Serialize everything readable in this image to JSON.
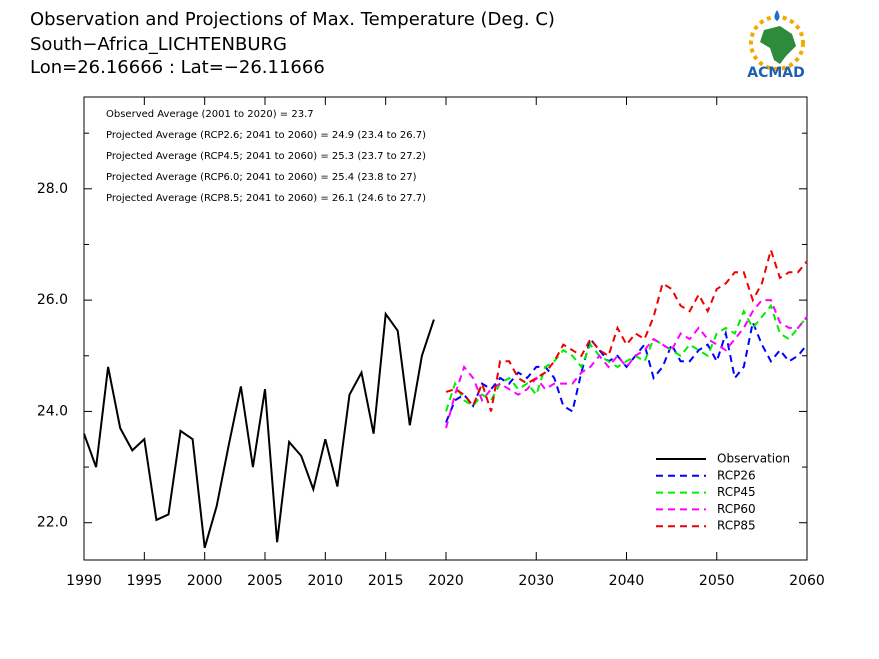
{
  "chart_data": {
    "type": "line",
    "title": [
      "Observation and Projections of Max. Temperature (Deg. C)",
      "South−Africa_LICHTENBURG",
      "Lon=26.16666 : Lat=−26.11666"
    ],
    "logo_text": "ACMAD",
    "annotations": [
      "Observed Average (2001 to 2020) = 23.7",
      "Projected Average (RCP2.6; 2041 to 2060) = 24.9 (23.4 to 26.7)",
      "Projected Average (RCP4.5; 2041 to 2060) = 25.3 (23.7 to 27.2)",
      "Projected Average (RCP6.0; 2041 to 2060) = 25.4 (23.8 to 27)",
      "Projected Average (RCP8.5; 2041 to 2060) = 26.1 (24.6 to 27.7)"
    ],
    "xlim": [
      1990,
      2060
    ],
    "xticks": [
      1990,
      1995,
      2000,
      2005,
      2010,
      2015,
      2020,
      2030,
      2040,
      2050,
      2060
    ],
    "ylim": [
      21.33,
      29.65
    ],
    "yticks": [
      {
        "value": 22,
        "label": "22.0"
      },
      {
        "value": 24,
        "label": "24.0"
      },
      {
        "value": 26,
        "label": "26.0"
      },
      {
        "value": 28,
        "label": "28.0"
      }
    ],
    "yminor_ticks": [
      23,
      25,
      27,
      29
    ],
    "legend": "lower right",
    "series": [
      {
        "name": "Observation",
        "color": "#000000",
        "linestyle": "solid",
        "x": [
          1990,
          1991,
          1992,
          1993,
          1994,
          1995,
          1996,
          1997,
          1998,
          1999,
          2000,
          2001,
          2002,
          2003,
          2004,
          2005,
          2006,
          2007,
          2008,
          2009,
          2010,
          2011,
          2012,
          2013,
          2014,
          2015,
          2016,
          2017,
          2018,
          2019
        ],
        "values": [
          23.6,
          23.0,
          24.8,
          23.7,
          23.3,
          23.5,
          22.05,
          22.15,
          23.65,
          23.5,
          21.55,
          22.3,
          23.4,
          24.45,
          23.0,
          24.4,
          21.65,
          23.45,
          23.2,
          22.6,
          23.5,
          22.65,
          24.3,
          24.7,
          23.6,
          25.75,
          25.45,
          23.75,
          25.0,
          25.65
        ]
      },
      {
        "name": "RCP26",
        "color": "#0000ff",
        "linestyle": "dashed",
        "x": [
          2020,
          2021,
          2022,
          2023,
          2024,
          2025,
          2026,
          2027,
          2028,
          2029,
          2030,
          2031,
          2032,
          2033,
          2034,
          2035,
          2036,
          2037,
          2038,
          2039,
          2040,
          2041,
          2042,
          2043,
          2044,
          2045,
          2046,
          2047,
          2048,
          2049,
          2050,
          2051,
          2052,
          2053,
          2054,
          2055,
          2056,
          2057,
          2058,
          2059,
          2060
        ],
        "values": [
          23.8,
          24.2,
          24.3,
          24.1,
          24.5,
          24.4,
          24.6,
          24.5,
          24.7,
          24.6,
          24.8,
          24.8,
          24.6,
          24.1,
          24.0,
          24.7,
          25.3,
          25.1,
          24.9,
          25.0,
          24.8,
          25.0,
          25.2,
          24.6,
          24.8,
          25.2,
          24.9,
          24.9,
          25.1,
          25.2,
          24.9,
          25.4,
          24.6,
          24.8,
          25.6,
          25.2,
          24.9,
          25.1,
          24.9,
          25.0,
          25.2
        ]
      },
      {
        "name": "RCP45",
        "color": "#00ee00",
        "linestyle": "dashed",
        "x": [
          2020,
          2021,
          2022,
          2023,
          2024,
          2025,
          2026,
          2027,
          2028,
          2029,
          2030,
          2031,
          2032,
          2033,
          2034,
          2035,
          2036,
          2037,
          2038,
          2039,
          2040,
          2041,
          2042,
          2043,
          2044,
          2045,
          2046,
          2047,
          2048,
          2049,
          2050,
          2051,
          2052,
          2053,
          2054,
          2055,
          2056,
          2057,
          2058,
          2059,
          2060
        ],
        "values": [
          24.0,
          24.5,
          24.2,
          24.1,
          24.3,
          24.2,
          24.5,
          24.6,
          24.4,
          24.5,
          24.3,
          24.8,
          24.9,
          25.1,
          25.0,
          24.8,
          25.2,
          25.0,
          24.9,
          24.8,
          24.9,
          25.0,
          24.9,
          25.3,
          25.2,
          25.1,
          25.0,
          25.2,
          25.1,
          25.0,
          25.4,
          25.5,
          25.4,
          25.8,
          25.5,
          25.7,
          25.9,
          25.4,
          25.3,
          25.5,
          25.7
        ]
      },
      {
        "name": "RCP60",
        "color": "#ff00ff",
        "linestyle": "dashed",
        "x": [
          2020,
          2021,
          2022,
          2023,
          2024,
          2025,
          2026,
          2027,
          2028,
          2029,
          2030,
          2031,
          2032,
          2033,
          2034,
          2035,
          2036,
          2037,
          2038,
          2039,
          2040,
          2041,
          2042,
          2043,
          2044,
          2045,
          2046,
          2047,
          2048,
          2049,
          2050,
          2051,
          2052,
          2053,
          2054,
          2055,
          2056,
          2057,
          2058,
          2059,
          2060
        ],
        "values": [
          23.7,
          24.3,
          24.8,
          24.6,
          24.2,
          24.4,
          24.5,
          24.4,
          24.3,
          24.4,
          24.6,
          24.4,
          24.5,
          24.5,
          24.5,
          24.7,
          24.8,
          25.0,
          24.8,
          25.0,
          24.8,
          25.0,
          25.1,
          25.3,
          25.2,
          25.1,
          25.4,
          25.3,
          25.5,
          25.3,
          25.2,
          25.1,
          25.3,
          25.5,
          25.8,
          26.0,
          26.0,
          25.6,
          25.5,
          25.5,
          25.7
        ]
      },
      {
        "name": "RCP85",
        "color": "#ee0000",
        "linestyle": "dashed",
        "x": [
          2020,
          2021,
          2022,
          2023,
          2024,
          2025,
          2026,
          2027,
          2028,
          2029,
          2030,
          2031,
          2032,
          2033,
          2034,
          2035,
          2036,
          2037,
          2038,
          2039,
          2040,
          2041,
          2042,
          2043,
          2044,
          2045,
          2046,
          2047,
          2048,
          2049,
          2050,
          2051,
          2052,
          2053,
          2054,
          2055,
          2056,
          2057,
          2058,
          2059,
          2060
        ],
        "values": [
          24.35,
          24.4,
          24.3,
          24.1,
          24.5,
          24.0,
          24.9,
          24.9,
          24.6,
          24.5,
          24.6,
          24.7,
          24.9,
          25.2,
          25.1,
          25.0,
          25.3,
          25.1,
          25.0,
          25.5,
          25.2,
          25.4,
          25.3,
          25.7,
          26.3,
          26.2,
          25.9,
          25.8,
          26.1,
          25.8,
          26.2,
          26.3,
          26.5,
          26.5,
          26.0,
          26.3,
          26.9,
          26.4,
          26.5,
          26.5,
          26.7
        ]
      }
    ]
  }
}
